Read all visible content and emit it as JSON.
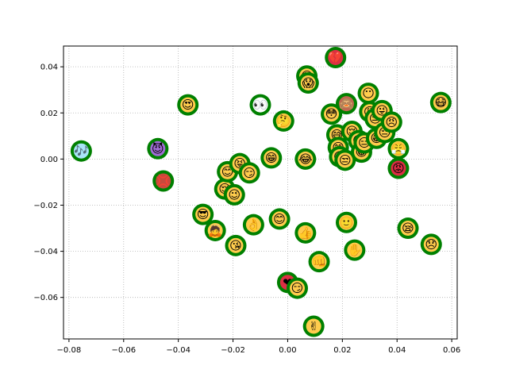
{
  "chart_data": {
    "type": "scatter",
    "title": "",
    "xlabel": "",
    "ylabel": "",
    "xlim": [
      -0.082,
      0.062
    ],
    "ylim": [
      -0.078,
      0.049
    ],
    "grid": true,
    "x_ticks": [
      -0.08,
      -0.06,
      -0.04,
      -0.02,
      0.0,
      0.02,
      0.04,
      0.06
    ],
    "x_tick_labels": [
      "−0.08",
      "−0.06",
      "−0.04",
      "−0.02",
      "0.00",
      "0.02",
      "0.04",
      "0.06"
    ],
    "y_ticks": [
      -0.06,
      -0.04,
      -0.02,
      0.0,
      0.02,
      0.04
    ],
    "y_tick_labels": [
      "−0.06",
      "−0.04",
      "−0.02",
      "0.00",
      "0.02",
      "0.04"
    ],
    "marker_edge_color": "#008000",
    "points": [
      {
        "x": -0.0755,
        "y": 0.0035,
        "emoji": "🎶",
        "fill": "#a9e4f7"
      },
      {
        "x": -0.0475,
        "y": 0.0045,
        "emoji": "😈",
        "fill": "#a06cd5"
      },
      {
        "x": -0.0455,
        "y": -0.0095,
        "emoji": "💢",
        "fill": "#c84a3c"
      },
      {
        "x": -0.0365,
        "y": 0.0235,
        "emoji": "😍",
        "fill": "#ffcc4d"
      },
      {
        "x": -0.031,
        "y": -0.024,
        "emoji": "😎",
        "fill": "#ffcc4d"
      },
      {
        "x": -0.0265,
        "y": -0.031,
        "emoji": "🙇",
        "fill": "#ffcc4d"
      },
      {
        "x": -0.023,
        "y": -0.013,
        "emoji": "😌",
        "fill": "#ffcc4d"
      },
      {
        "x": -0.022,
        "y": -0.0055,
        "emoji": "😊",
        "fill": "#ffcc4d"
      },
      {
        "x": -0.0195,
        "y": -0.0155,
        "emoji": "😉",
        "fill": "#ffcc4d"
      },
      {
        "x": -0.019,
        "y": -0.0375,
        "emoji": "😘",
        "fill": "#ffcc4d"
      },
      {
        "x": -0.0175,
        "y": -0.002,
        "emoji": "😝",
        "fill": "#ffcc4d"
      },
      {
        "x": -0.014,
        "y": -0.006,
        "emoji": "😏",
        "fill": "#ffcc4d"
      },
      {
        "x": -0.0125,
        "y": -0.0285,
        "emoji": "👌",
        "fill": "#ffcc4d"
      },
      {
        "x": -0.01,
        "y": 0.0235,
        "emoji": "👀",
        "fill": "#ffffff"
      },
      {
        "x": -0.006,
        "y": 0.0005,
        "emoji": "😁",
        "fill": "#ffcc4d"
      },
      {
        "x": -0.003,
        "y": -0.026,
        "emoji": "😊",
        "fill": "#ffcc4d"
      },
      {
        "x": -0.0015,
        "y": 0.0165,
        "emoji": "🤔",
        "fill": "#ffcc4d"
      },
      {
        "x": 0.0,
        "y": -0.0535,
        "emoji": "❤",
        "fill": "#dd2e44"
      },
      {
        "x": 0.0035,
        "y": -0.056,
        "emoji": "😏",
        "fill": "#ffcc4d"
      },
      {
        "x": 0.007,
        "y": 0.036,
        "emoji": "😱",
        "fill": "#ffcc4d"
      },
      {
        "x": 0.0075,
        "y": 0.033,
        "emoji": "😱",
        "fill": "#ffcc4d"
      },
      {
        "x": 0.0065,
        "y": 0.0,
        "emoji": "😂",
        "fill": "#ffcc4d"
      },
      {
        "x": 0.0065,
        "y": -0.032,
        "emoji": "👍",
        "fill": "#ffcc4d"
      },
      {
        "x": 0.0095,
        "y": -0.0725,
        "emoji": "✌",
        "fill": "#ffcc4d"
      },
      {
        "x": 0.0115,
        "y": -0.0445,
        "emoji": "👊",
        "fill": "#ffcc4d"
      },
      {
        "x": 0.016,
        "y": 0.0195,
        "emoji": "😳",
        "fill": "#ffcc4d"
      },
      {
        "x": 0.0175,
        "y": 0.044,
        "emoji": "💔",
        "fill": "#dd2e44"
      },
      {
        "x": 0.018,
        "y": 0.0105,
        "emoji": "😅",
        "fill": "#ffcc4d"
      },
      {
        "x": 0.0185,
        "y": 0.005,
        "emoji": "😄",
        "fill": "#ffcc4d"
      },
      {
        "x": 0.019,
        "y": 0.001,
        "emoji": "😌",
        "fill": "#ffcc4d"
      },
      {
        "x": 0.0215,
        "y": 0.024,
        "emoji": "🙈",
        "fill": "#bf6952"
      },
      {
        "x": 0.021,
        "y": -0.0005,
        "emoji": "😒",
        "fill": "#ffcc4d"
      },
      {
        "x": 0.0215,
        "y": -0.0275,
        "emoji": "🙂",
        "fill": "#ffcc4d"
      },
      {
        "x": 0.0235,
        "y": 0.012,
        "emoji": "😌",
        "fill": "#ffcc4d"
      },
      {
        "x": 0.0245,
        "y": -0.0395,
        "emoji": "✋",
        "fill": "#ffcc4d"
      },
      {
        "x": 0.026,
        "y": 0.008,
        "emoji": "😏",
        "fill": "#ffcc4d"
      },
      {
        "x": 0.027,
        "y": 0.003,
        "emoji": "😁",
        "fill": "#ffcc4d"
      },
      {
        "x": 0.028,
        "y": 0.007,
        "emoji": "😑",
        "fill": "#ffcc4d"
      },
      {
        "x": 0.0295,
        "y": 0.0285,
        "emoji": "😶",
        "fill": "#ffcc4d"
      },
      {
        "x": 0.03,
        "y": 0.0205,
        "emoji": "😩",
        "fill": "#ffcc4d"
      },
      {
        "x": 0.032,
        "y": 0.0175,
        "emoji": "😒",
        "fill": "#ffcc4d"
      },
      {
        "x": 0.0325,
        "y": 0.009,
        "emoji": "😁",
        "fill": "#ffcc4d"
      },
      {
        "x": 0.0345,
        "y": 0.021,
        "emoji": "😜",
        "fill": "#ffcc4d"
      },
      {
        "x": 0.0355,
        "y": 0.0115,
        "emoji": "😔",
        "fill": "#ffcc4d"
      },
      {
        "x": 0.038,
        "y": 0.016,
        "emoji": "😠",
        "fill": "#ffcc4d"
      },
      {
        "x": 0.0405,
        "y": 0.0045,
        "emoji": "😤",
        "fill": "#ffcc4d"
      },
      {
        "x": 0.0405,
        "y": -0.004,
        "emoji": "😡",
        "fill": "#dd2e44"
      },
      {
        "x": 0.044,
        "y": -0.03,
        "emoji": "😪",
        "fill": "#ffcc4d"
      },
      {
        "x": 0.0525,
        "y": -0.037,
        "emoji": "😞",
        "fill": "#ffcc4d"
      },
      {
        "x": 0.056,
        "y": 0.0245,
        "emoji": "😷",
        "fill": "#ffcc4d"
      }
    ]
  }
}
